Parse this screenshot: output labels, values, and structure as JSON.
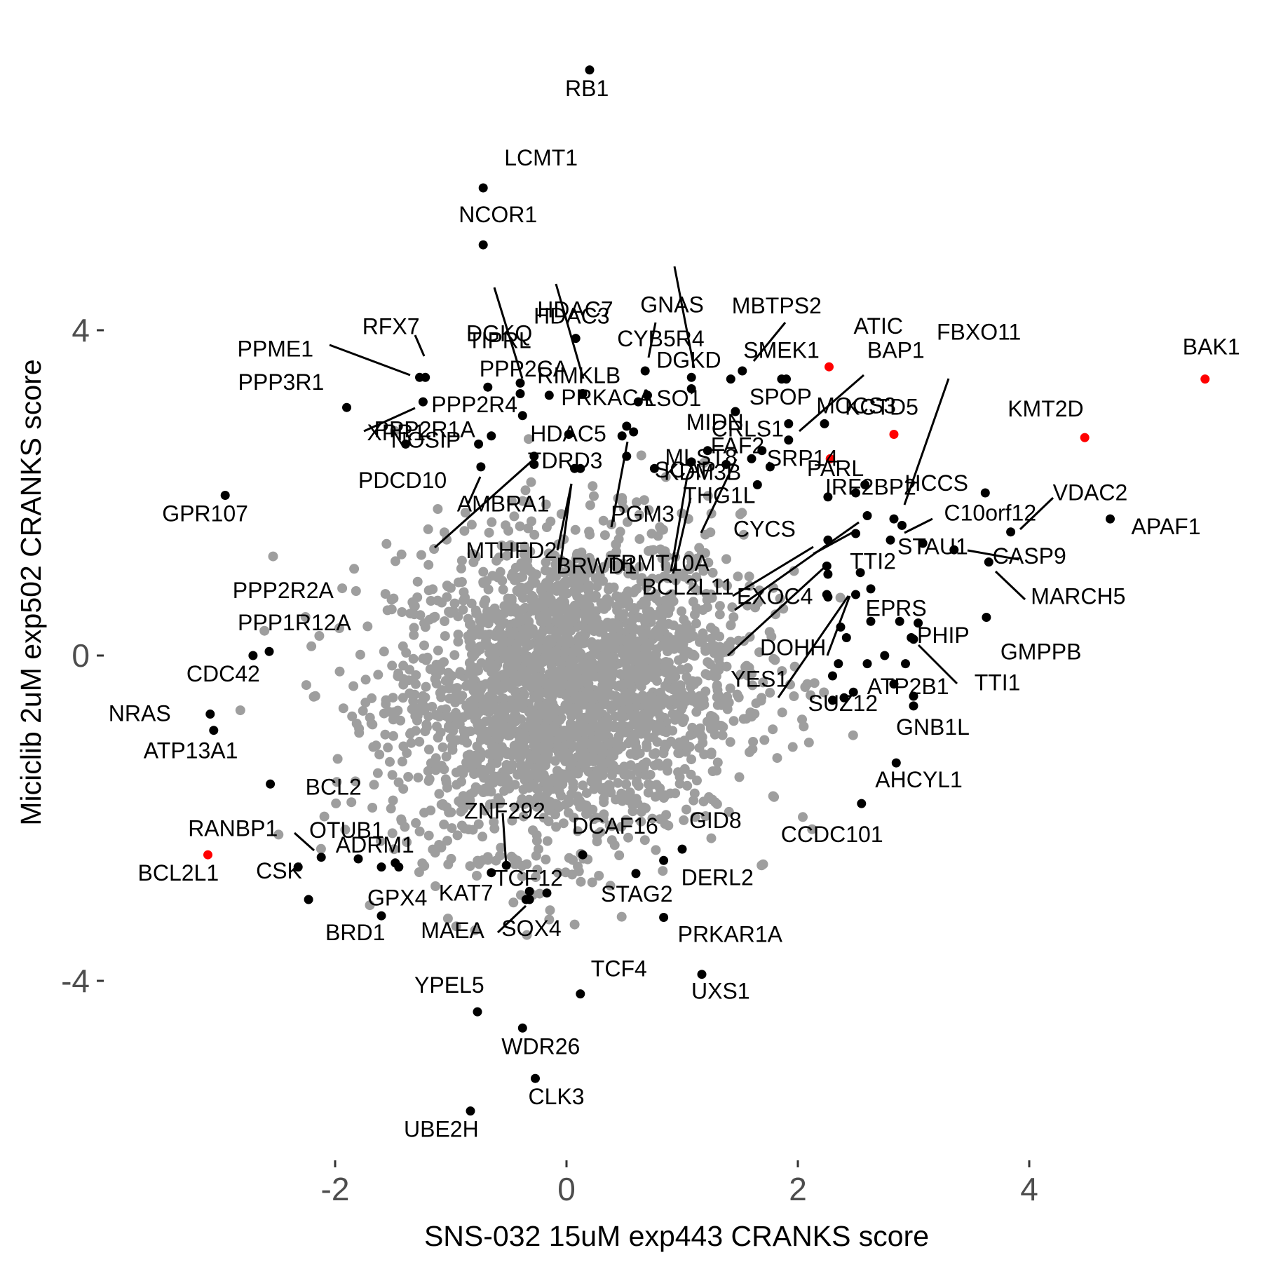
{
  "chart_data": {
    "type": "scatter",
    "xlabel": "SNS-032 15uM exp443 CRANKS score",
    "ylabel": "Miciclib 2uM exp502 CRANKS score",
    "xticks": [
      -2,
      0,
      2,
      4
    ],
    "yticks": [
      -4,
      0,
      4
    ],
    "xlim": [
      -4.0,
      5.9
    ],
    "ylim": [
      -6.2,
      7.3
    ],
    "grid": false,
    "legend": "none",
    "colors": {
      "background": "#ffffff",
      "background_points": "#9e9e9e",
      "highlight": "#000000",
      "hit": "#ff0000"
    },
    "background_cloud": {
      "description_of_generation": "bulk of genes centered near origin",
      "center": [
        0.0,
        -0.4
      ],
      "sd": [
        0.75,
        0.95
      ]
    },
    "genes": [
      {
        "label": "RB1",
        "x": 0.2,
        "y": 7.2,
        "color": "black"
      },
      {
        "label": "LCMT1",
        "x": -0.72,
        "y": 5.75,
        "color": "black"
      },
      {
        "label": "NCOR1",
        "x": -0.72,
        "y": 5.05,
        "color": "black"
      },
      {
        "label": "DGKQ",
        "x": -0.4,
        "y": 3.35,
        "color": "black"
      },
      {
        "label": "HDAC3",
        "x": 0.14,
        "y": 3.22,
        "color": "black"
      },
      {
        "label": "GNAS",
        "x": 1.08,
        "y": 3.42,
        "color": "black"
      },
      {
        "label": "HDAC7",
        "x": 0.08,
        "y": 3.9,
        "color": "black"
      },
      {
        "label": "CYB5R4",
        "x": 0.68,
        "y": 3.5,
        "color": "black"
      },
      {
        "label": "MBTPS2",
        "x": 1.52,
        "y": 3.5,
        "color": "black"
      },
      {
        "label": "TIPRL",
        "x": -0.4,
        "y": 3.22,
        "color": "black"
      },
      {
        "label": "RFX7",
        "x": -1.22,
        "y": 3.42,
        "color": "black"
      },
      {
        "label": "PPME1",
        "x": -1.27,
        "y": 3.42,
        "color": "black"
      },
      {
        "label": "PPP2CA",
        "x": -0.68,
        "y": 3.3,
        "color": "black"
      },
      {
        "label": "RIMKLB",
        "x": 0.14,
        "y": 3.22,
        "color": "black"
      },
      {
        "label": "DGKD",
        "x": 1.08,
        "y": 3.28,
        "color": "black"
      },
      {
        "label": "SMEK1",
        "x": 1.42,
        "y": 3.4,
        "color": "black"
      },
      {
        "label": "ATIC",
        "x": 2.27,
        "y": 3.55,
        "color": "red"
      },
      {
        "label": "BAK1",
        "x": 5.52,
        "y": 3.4,
        "color": "red"
      },
      {
        "label": "PPP3R1",
        "x": -1.9,
        "y": 3.05,
        "color": "black"
      },
      {
        "label": "XPR1",
        "x": -1.24,
        "y": 3.12,
        "color": "black"
      },
      {
        "label": "PPP2R4",
        "x": -0.38,
        "y": 2.95,
        "color": "black"
      },
      {
        "label": "PRKACA",
        "x": 0.62,
        "y": 3.12,
        "color": "black"
      },
      {
        "label": "LSO1",
        "x": 0.7,
        "y": 3.2,
        "color": "black"
      },
      {
        "label": "SPOP",
        "x": 1.46,
        "y": 3.0,
        "color": "black"
      },
      {
        "label": "BAP1",
        "x": 1.86,
        "y": 3.4,
        "color": "black"
      },
      {
        "label": "FBXO11",
        "x": 2.23,
        "y": 2.85,
        "color": "black"
      },
      {
        "label": "MOCS3",
        "x": 2.28,
        "y": 2.42,
        "color": "red"
      },
      {
        "label": "KCTD5",
        "x": 2.83,
        "y": 2.72,
        "color": "red"
      },
      {
        "label": "KMT2D",
        "x": 4.48,
        "y": 2.68,
        "color": "red"
      },
      {
        "label": "PPP2R1A",
        "x": -1.39,
        "y": 2.6,
        "color": "black"
      },
      {
        "label": "CRLS1",
        "x": 1.92,
        "y": 2.65,
        "color": "black"
      },
      {
        "label": "HDAC5",
        "x": 0.02,
        "y": 2.72,
        "color": "black"
      },
      {
        "label": "MIDN",
        "x": 0.52,
        "y": 2.82,
        "color": "black"
      },
      {
        "label": "NOSIP",
        "x": -0.76,
        "y": 2.6,
        "color": "black"
      },
      {
        "label": "SRP14",
        "x": 1.69,
        "y": 2.52,
        "color": "black"
      },
      {
        "label": "MLST8",
        "x": 1.76,
        "y": 2.32,
        "color": "black"
      },
      {
        "label": "FAF2",
        "x": 2.58,
        "y": 2.1,
        "color": "black"
      },
      {
        "label": "SCAP",
        "x": 0.52,
        "y": 2.45,
        "color": "black"
      },
      {
        "label": "KDM3B",
        "x": 1.6,
        "y": 2.42,
        "color": "black"
      },
      {
        "label": "THG1L",
        "x": 1.22,
        "y": 2.52,
        "color": "black"
      },
      {
        "label": "PARL",
        "x": 2.26,
        "y": 1.95,
        "color": "black"
      },
      {
        "label": "HCCS",
        "x": 3.62,
        "y": 2.0,
        "color": "black"
      },
      {
        "label": "VDAC2",
        "x": 3.84,
        "y": 1.52,
        "color": "black"
      },
      {
        "label": "APAF1",
        "x": 4.7,
        "y": 1.68,
        "color": "black"
      },
      {
        "label": "GPR107",
        "x": -2.95,
        "y": 1.97,
        "color": "black"
      },
      {
        "label": "PDCD10",
        "x": -0.74,
        "y": 2.32,
        "color": "black"
      },
      {
        "label": "TDRD3",
        "x": 0.12,
        "y": 2.3,
        "color": "black"
      },
      {
        "label": "PGM3",
        "x": 1.08,
        "y": 2.38,
        "color": "black"
      },
      {
        "label": "AMBRA1",
        "x": -0.28,
        "y": 2.35,
        "color": "black"
      },
      {
        "label": "PPP2R2A",
        "x": -0.28,
        "y": 2.45,
        "color": "black"
      },
      {
        "label": "C10orf12",
        "x": 2.9,
        "y": 1.6,
        "color": "black"
      },
      {
        "label": "IRF2BP2",
        "x": 2.6,
        "y": 1.72,
        "color": "black"
      },
      {
        "label": "STAU1",
        "x": 2.8,
        "y": 1.42,
        "color": "black"
      },
      {
        "label": "CASP9",
        "x": 3.35,
        "y": 1.3,
        "color": "black"
      },
      {
        "label": "MARCH5",
        "x": 3.65,
        "y": 1.15,
        "color": "black"
      },
      {
        "label": "MTHFD2",
        "x": 0.07,
        "y": 2.3,
        "color": "black"
      },
      {
        "label": "BRWD1",
        "x": 0.76,
        "y": 2.3,
        "color": "black"
      },
      {
        "label": "CYCS",
        "x": 2.26,
        "y": 1.42,
        "color": "black"
      },
      {
        "label": "TTI2",
        "x": 2.54,
        "y": 1.02,
        "color": "black"
      },
      {
        "label": "EPRS",
        "x": 3.04,
        "y": 0.4,
        "color": "black"
      },
      {
        "label": "GMPPB",
        "x": 3.63,
        "y": 0.47,
        "color": "black"
      },
      {
        "label": "TRMT10A",
        "x": 2.26,
        "y": 1.0,
        "color": "black"
      },
      {
        "label": "EXOC4",
        "x": 2.26,
        "y": 0.72,
        "color": "black"
      },
      {
        "label": "PHIP",
        "x": 3.0,
        "y": 0.2,
        "color": "black"
      },
      {
        "label": "TTI1",
        "x": 2.98,
        "y": 0.22,
        "color": "black"
      },
      {
        "label": "PPP1R12A",
        "x": -2.57,
        "y": 0.05,
        "color": "black"
      },
      {
        "label": "CDC42",
        "x": -2.71,
        "y": 0.0,
        "color": "black"
      },
      {
        "label": "BCL2L11",
        "x": 2.5,
        "y": 0.75,
        "color": "black"
      },
      {
        "label": "DOHH",
        "x": 2.37,
        "y": 0.35,
        "color": "black"
      },
      {
        "label": "ATP2B1",
        "x": 2.75,
        "y": 0.0,
        "color": "black"
      },
      {
        "label": "YES1",
        "x": 2.42,
        "y": 0.22,
        "color": "black"
      },
      {
        "label": "NRAS",
        "x": -3.08,
        "y": -0.72,
        "color": "black"
      },
      {
        "label": "ATP13A1",
        "x": -3.05,
        "y": -0.92,
        "color": "black"
      },
      {
        "label": "SUZ12",
        "x": 2.3,
        "y": -0.25,
        "color": "black"
      },
      {
        "label": "GNB1L",
        "x": 3.0,
        "y": -0.5,
        "color": "black"
      },
      {
        "label": "AHCYL1",
        "x": 2.85,
        "y": -1.32,
        "color": "black"
      },
      {
        "label": "CCDC101",
        "x": 2.55,
        "y": -1.82,
        "color": "black"
      },
      {
        "label": "BCL2",
        "x": -2.56,
        "y": -1.58,
        "color": "black"
      },
      {
        "label": "ZNF292",
        "x": -0.52,
        "y": -2.58,
        "color": "black"
      },
      {
        "label": "DCAF16",
        "x": 0.14,
        "y": -2.45,
        "color": "black"
      },
      {
        "label": "GID8",
        "x": 1.0,
        "y": -2.38,
        "color": "black"
      },
      {
        "label": "RANBP1",
        "x": -2.12,
        "y": -2.48,
        "color": "black"
      },
      {
        "label": "OTUB1",
        "x": -1.8,
        "y": -2.5,
        "color": "black"
      },
      {
        "label": "ADRM1",
        "x": -1.48,
        "y": -2.55,
        "color": "black"
      },
      {
        "label": "BCL2L1",
        "x": -3.1,
        "y": -2.45,
        "color": "red"
      },
      {
        "label": "CSK",
        "x": -2.23,
        "y": -3.0,
        "color": "black"
      },
      {
        "label": "GPX4",
        "x": -1.6,
        "y": -2.6,
        "color": "black"
      },
      {
        "label": "KAT7",
        "x": -0.65,
        "y": -2.67,
        "color": "black"
      },
      {
        "label": "TCF12",
        "x": -0.17,
        "y": -2.92,
        "color": "black"
      },
      {
        "label": "STAG2",
        "x": 0.6,
        "y": -2.68,
        "color": "black"
      },
      {
        "label": "DERL2",
        "x": 0.84,
        "y": -2.52,
        "color": "black"
      },
      {
        "label": "BRD1",
        "x": -1.6,
        "y": -3.2,
        "color": "black"
      },
      {
        "label": "MAEA",
        "x": -0.32,
        "y": -3.0,
        "color": "black"
      },
      {
        "label": "SOX4",
        "x": -0.35,
        "y": -3.0,
        "color": "black"
      },
      {
        "label": "PRKAR1A",
        "x": 0.84,
        "y": -3.22,
        "color": "black"
      },
      {
        "label": "TCF4",
        "x": 0.12,
        "y": -4.16,
        "color": "black"
      },
      {
        "label": "UXS1",
        "x": 1.17,
        "y": -3.92,
        "color": "black"
      },
      {
        "label": "YPEL5",
        "x": -0.77,
        "y": -4.38,
        "color": "black"
      },
      {
        "label": "WDR26",
        "x": -0.38,
        "y": -4.58,
        "color": "black"
      },
      {
        "label": "CLK3",
        "x": -0.27,
        "y": -5.2,
        "color": "black"
      },
      {
        "label": "UBE2H",
        "x": -0.83,
        "y": -5.6,
        "color": "black"
      }
    ],
    "extra_points": [
      {
        "x": 1.9,
        "y": 3.4
      },
      {
        "x": 1.92,
        "y": 2.85
      },
      {
        "x": 2.5,
        "y": 2.0
      },
      {
        "x": 2.83,
        "y": 1.68
      },
      {
        "x": 3.08,
        "y": 1.38
      },
      {
        "x": 2.63,
        "y": 0.82
      },
      {
        "x": 2.63,
        "y": 0.42
      },
      {
        "x": 2.88,
        "y": 0.42
      },
      {
        "x": 2.93,
        "y": -0.1
      },
      {
        "x": 2.83,
        "y": -0.35
      },
      {
        "x": 3.0,
        "y": -0.62
      },
      {
        "x": 2.3,
        "y": -0.55
      },
      {
        "x": 2.4,
        "y": -0.52
      },
      {
        "x": 2.48,
        "y": -0.45
      },
      {
        "x": 2.35,
        "y": -0.1
      },
      {
        "x": 2.6,
        "y": -0.1
      },
      {
        "x": -2.32,
        "y": -2.6
      },
      {
        "x": -0.65,
        "y": 2.7
      },
      {
        "x": -0.15,
        "y": 3.2
      },
      {
        "x": 0.48,
        "y": 2.7
      },
      {
        "x": 1.38,
        "y": 2.35
      },
      {
        "x": 0.58,
        "y": 2.75
      },
      {
        "x": 1.65,
        "y": 2.1
      },
      {
        "x": 2.5,
        "y": 1.5
      },
      {
        "x": 2.25,
        "y": 1.1
      },
      {
        "x": 2.25,
        "y": 0.75
      },
      {
        "x": -1.45,
        "y": -2.6
      },
      {
        "x": -0.32,
        "y": -2.9
      }
    ]
  }
}
